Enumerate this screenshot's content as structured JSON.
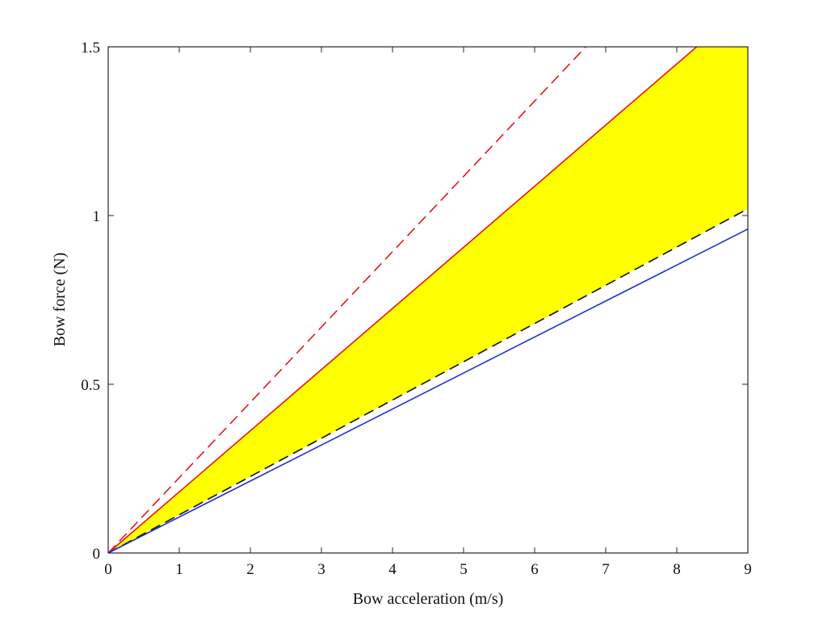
{
  "chart_data": {
    "type": "line",
    "title": "",
    "xlabel": "Bow acceleration (m/s)",
    "ylabel": "Bow force (N)",
    "xlim": [
      0,
      9
    ],
    "ylim": [
      0,
      1.5
    ],
    "x_ticks": [
      "0",
      "1",
      "2",
      "3",
      "4",
      "5",
      "6",
      "7",
      "8",
      "9"
    ],
    "y_ticks": [
      "0",
      "0.5",
      "1",
      "1.5"
    ],
    "grid": false,
    "legend": false,
    "series": [
      {
        "x": [
          0,
          6.72
        ],
        "values": [
          0,
          1.5
        ],
        "color": "#e8141c",
        "style": "dashed"
      },
      {
        "x": [
          0,
          8.28
        ],
        "values": [
          0,
          1.5
        ],
        "color": "#e8141c",
        "style": "solid"
      },
      {
        "x": [
          0,
          9
        ],
        "values": [
          0,
          1.02
        ],
        "color": "#111111",
        "style": "dashed"
      },
      {
        "x": [
          0,
          9
        ],
        "values": [
          0,
          0.96
        ],
        "color": "#1f2fd0",
        "style": "solid"
      }
    ],
    "shaded_region": {
      "color": "#ffff00",
      "upper": {
        "x": [
          0,
          8.28,
          9
        ],
        "values": [
          0,
          1.5,
          1.5
        ]
      },
      "lower": {
        "x": [
          0,
          9
        ],
        "values": [
          0,
          1.02
        ]
      }
    }
  }
}
